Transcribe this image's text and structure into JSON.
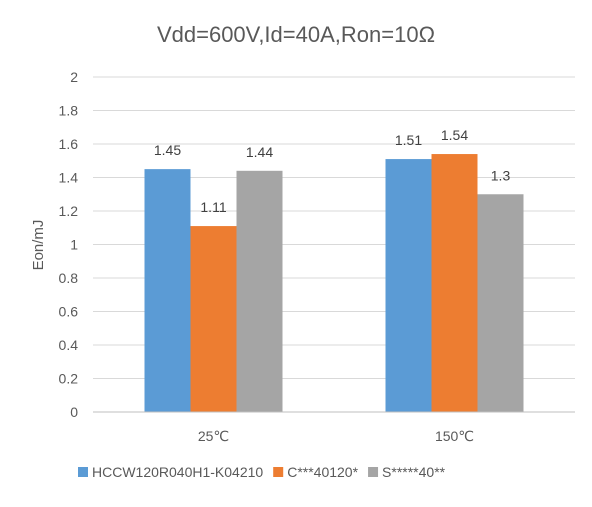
{
  "chart_data": {
    "type": "bar",
    "title": "Vdd=600V,Id=40A,Ron=10Ω",
    "xlabel": "",
    "ylabel": "Eon/mJ",
    "categories": [
      "25℃",
      "150℃"
    ],
    "series": [
      {
        "name": "HCCW120R040H1-K04210",
        "color": "#5b9bd5",
        "values": [
          1.45,
          1.51
        ],
        "labels": [
          "1.45",
          "1.51"
        ]
      },
      {
        "name": "C***40120*",
        "color": "#ed7d31",
        "values": [
          1.11,
          1.54
        ],
        "labels": [
          "1.11",
          "1.54"
        ]
      },
      {
        "name": "S*****40**",
        "color": "#a5a5a5",
        "values": [
          1.44,
          1.3
        ],
        "labels": [
          "1.44",
          "1.3"
        ]
      }
    ],
    "ylim": [
      0,
      2
    ],
    "yticks": [
      0,
      0.2,
      0.4,
      0.6,
      0.8,
      1,
      1.2,
      1.4,
      1.6,
      1.8,
      2
    ],
    "ytick_labels": [
      "0",
      "0.2",
      "0.4",
      "0.6",
      "0.8",
      "1",
      "1.2",
      "1.4",
      "1.6",
      "1.8",
      "2"
    ],
    "grid": true,
    "legend_position": "bottom"
  }
}
